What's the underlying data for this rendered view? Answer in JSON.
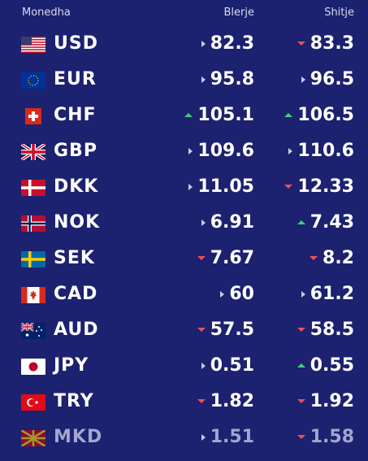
{
  "header": {
    "currency": "Monedha",
    "buy": "Blerje",
    "sell": "Shitje"
  },
  "colors": {
    "background": "#1c2170",
    "up": "#3fd27a",
    "down": "#ef4e5e",
    "flat": "#c8cce6"
  },
  "rows": [
    {
      "code": "USD",
      "flag": "us-flag-icon",
      "buy": "82.3",
      "buy_trend": "flat",
      "sell": "83.3",
      "sell_trend": "down"
    },
    {
      "code": "EUR",
      "flag": "eu-flag-icon",
      "buy": "95.8",
      "buy_trend": "flat",
      "sell": "96.5",
      "sell_trend": "flat"
    },
    {
      "code": "CHF",
      "flag": "ch-flag-icon",
      "buy": "105.1",
      "buy_trend": "up",
      "sell": "106.5",
      "sell_trend": "up"
    },
    {
      "code": "GBP",
      "flag": "gb-flag-icon",
      "buy": "109.6",
      "buy_trend": "flat",
      "sell": "110.6",
      "sell_trend": "flat"
    },
    {
      "code": "DKK",
      "flag": "dk-flag-icon",
      "buy": "11.05",
      "buy_trend": "flat",
      "sell": "12.33",
      "sell_trend": "down"
    },
    {
      "code": "NOK",
      "flag": "no-flag-icon",
      "buy": "6.91",
      "buy_trend": "flat",
      "sell": "7.43",
      "sell_trend": "up"
    },
    {
      "code": "SEK",
      "flag": "se-flag-icon",
      "buy": "7.67",
      "buy_trend": "down",
      "sell": "8.2",
      "sell_trend": "down"
    },
    {
      "code": "CAD",
      "flag": "ca-flag-icon",
      "buy": "60",
      "buy_trend": "flat",
      "sell": "61.2",
      "sell_trend": "flat"
    },
    {
      "code": "AUD",
      "flag": "au-flag-icon",
      "buy": "57.5",
      "buy_trend": "down",
      "sell": "58.5",
      "sell_trend": "down"
    },
    {
      "code": "JPY",
      "flag": "jp-flag-icon",
      "buy": "0.51",
      "buy_trend": "flat",
      "sell": "0.55",
      "sell_trend": "up"
    },
    {
      "code": "TRY",
      "flag": "tr-flag-icon",
      "buy": "1.82",
      "buy_trend": "down",
      "sell": "1.92",
      "sell_trend": "down"
    },
    {
      "code": "MKD",
      "flag": "mk-flag-icon",
      "buy": "1.51",
      "buy_trend": "flat",
      "sell": "1.58",
      "sell_trend": "down"
    }
  ]
}
